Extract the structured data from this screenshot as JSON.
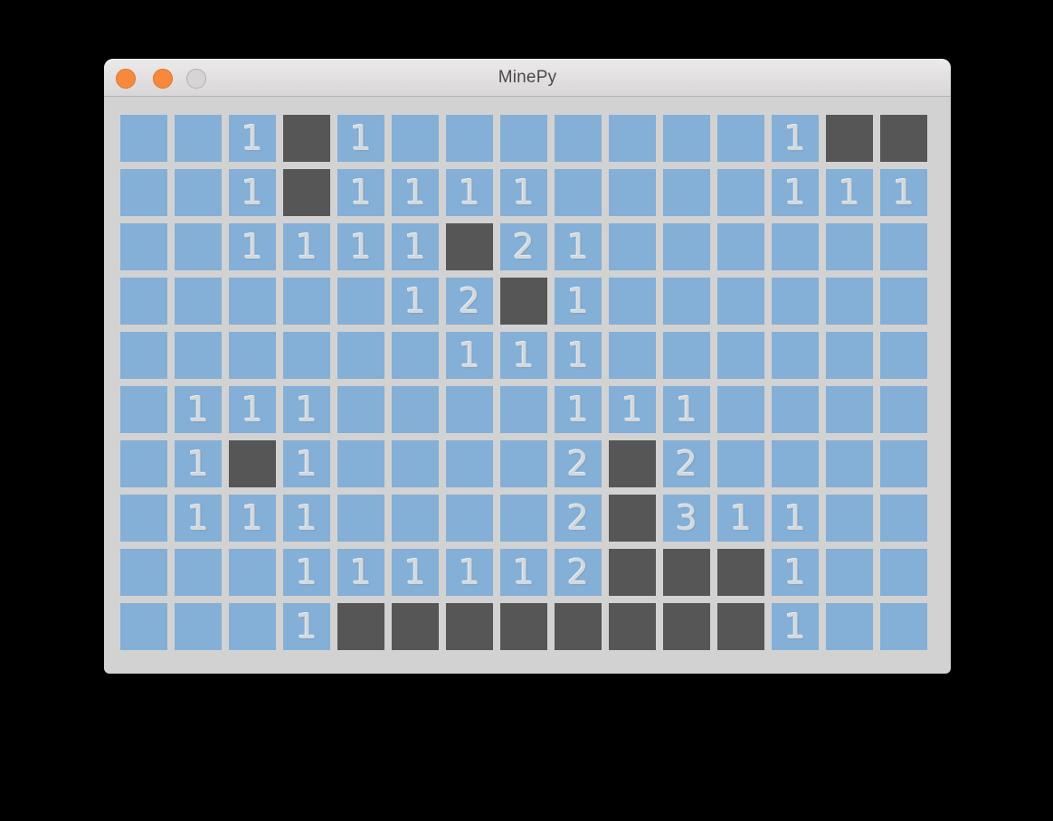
{
  "window": {
    "title": "MinePy",
    "titlebar_buttons": [
      {
        "id": "close",
        "color": "#f7893c",
        "border": "#e07428"
      },
      {
        "id": "minimize",
        "color": "#f7893c",
        "border": "#e07428"
      },
      {
        "id": "zoom",
        "color": "#d6d4d4",
        "border": "#b2b0b0"
      }
    ]
  },
  "board": {
    "rows": 10,
    "cols": 15,
    "cell_encoding": {
      "": "unrevealed",
      "D": "revealed-dark",
      "digit": "mine-count"
    },
    "grid": [
      [
        "",
        "",
        "1",
        "D",
        "1",
        "",
        "",
        "",
        "",
        "",
        "",
        "",
        "1",
        "D",
        "D"
      ],
      [
        "",
        "",
        "1",
        "D",
        "1",
        "1",
        "1",
        "1",
        "",
        "",
        "",
        "",
        "1",
        "1",
        "1"
      ],
      [
        "",
        "",
        "1",
        "1",
        "1",
        "1",
        "D",
        "2",
        "1",
        "",
        "",
        "",
        "",
        "",
        ""
      ],
      [
        "",
        "",
        "",
        "",
        "",
        "1",
        "2",
        "D",
        "1",
        "",
        "",
        "",
        "",
        "",
        ""
      ],
      [
        "",
        "",
        "",
        "",
        "",
        "",
        "1",
        "1",
        "1",
        "",
        "",
        "",
        "",
        "",
        ""
      ],
      [
        "",
        "1",
        "1",
        "1",
        "",
        "",
        "",
        "",
        "1",
        "1",
        "1",
        "",
        "",
        "",
        ""
      ],
      [
        "",
        "1",
        "D",
        "1",
        "",
        "",
        "",
        "",
        "2",
        "D",
        "2",
        "",
        "",
        "",
        ""
      ],
      [
        "",
        "1",
        "1",
        "1",
        "",
        "",
        "",
        "",
        "2",
        "D",
        "3",
        "1",
        "1",
        "",
        ""
      ],
      [
        "",
        "",
        "",
        "1",
        "1",
        "1",
        "1",
        "1",
        "2",
        "D",
        "D",
        "D",
        "1",
        "",
        ""
      ],
      [
        "",
        "",
        "",
        "1",
        "D",
        "D",
        "D",
        "D",
        "D",
        "D",
        "D",
        "D",
        "1",
        "",
        ""
      ]
    ]
  },
  "colors": {
    "cell_unrevealed": "#84afd7",
    "cell_revealed": "#565656",
    "cell_number": "#d3d8dc",
    "board_bg": "#d2d2d2",
    "titlebar_accent": "#f7893c"
  }
}
